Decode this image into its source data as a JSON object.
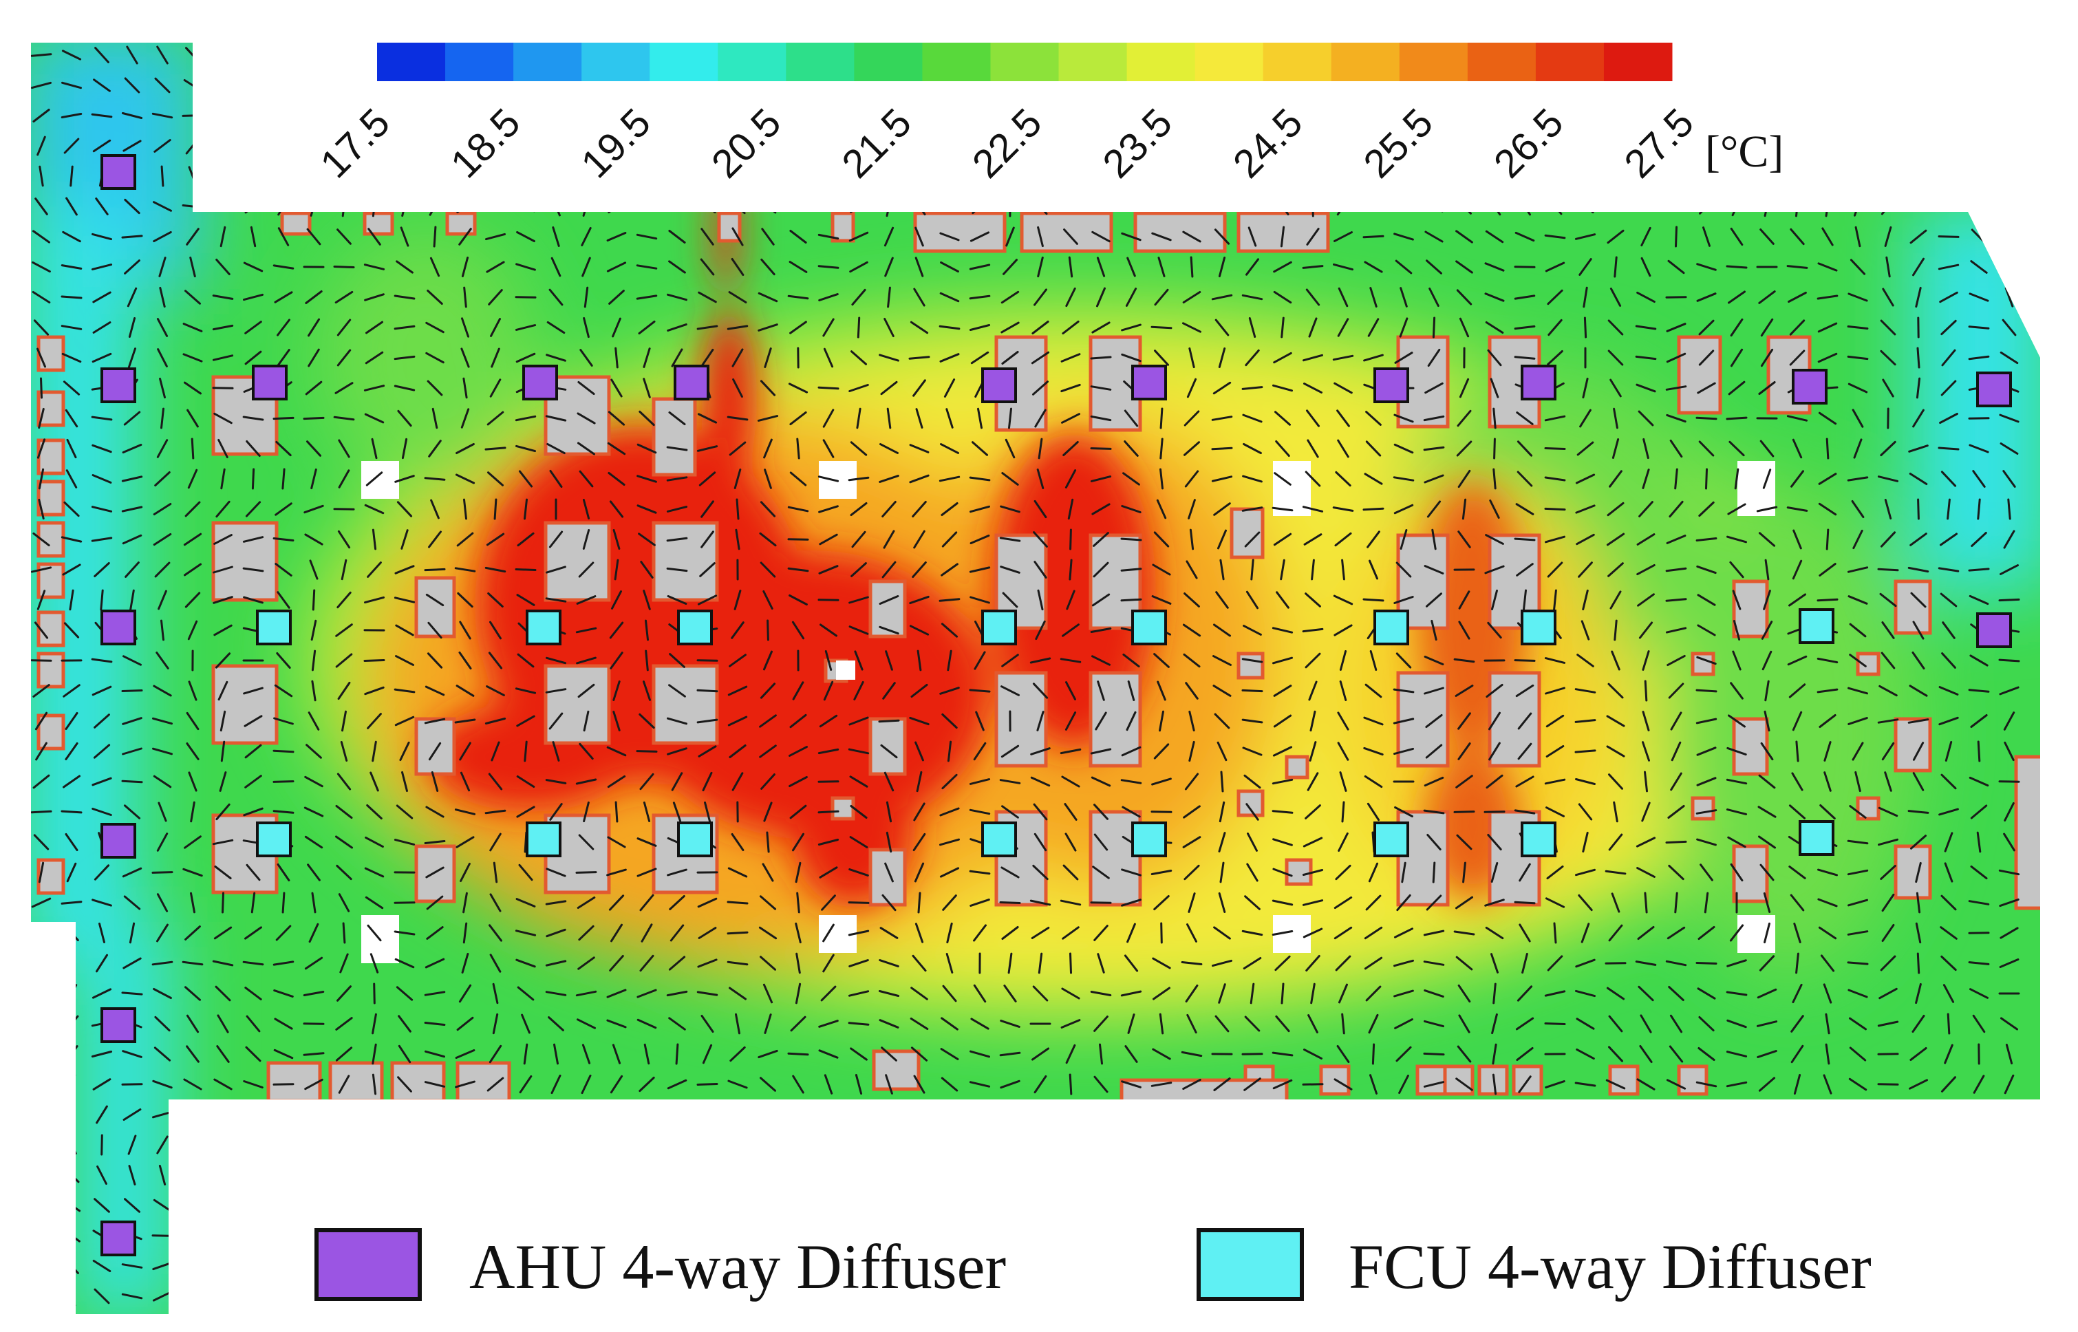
{
  "colorbar": {
    "ticks": [
      "17.5",
      "18.5",
      "19.5",
      "20.5",
      "21.5",
      "22.5",
      "23.5",
      "24.5",
      "25.5",
      "26.5",
      "27.5"
    ],
    "unit": "[°C]",
    "colors": [
      "#0a2fe0",
      "#1565f0",
      "#1f97f0",
      "#2ec6ee",
      "#33ecec",
      "#2ee8c0",
      "#2ddf8a",
      "#34d65a",
      "#58d93b",
      "#8ce23a",
      "#b9ea3b",
      "#e2ef36",
      "#f5e93a",
      "#f6cf2c",
      "#f4b021",
      "#f18a1a",
      "#ea6214",
      "#e43a12",
      "#dd1a10"
    ]
  },
  "legend": {
    "ahu_label": "AHU 4-way Diffuser",
    "fcu_label": "FCU 4-way Diffuser",
    "ahu_color": "#9b55e3",
    "fcu_color": "#5ff0f3"
  },
  "floor_colors": {
    "cold": "#0a2fe0",
    "cyan": "#35e3e8",
    "green": "#3fd84d",
    "lime": "#b9ea3b",
    "yellow": "#f3ea3a",
    "orange": "#f5a623",
    "red": "#e8210f",
    "obstacle": "#c5c5c5",
    "obstacle_border": "#e25a30"
  }
}
